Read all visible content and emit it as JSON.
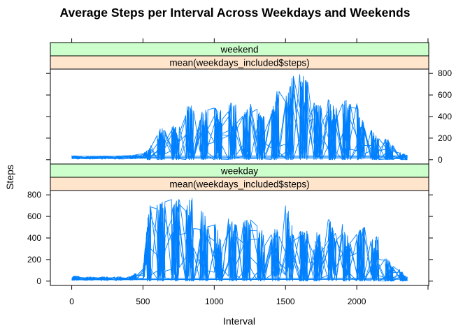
{
  "chart_data": {
    "type": "line",
    "title": "Average Steps per Interval Across Weekdays and Weekends",
    "xlabel": "Interval",
    "ylabel": "Steps",
    "xlim": [
      -150,
      2505
    ],
    "ylim": [
      -40,
      840
    ],
    "x_ticks": [
      0,
      500,
      1000,
      1500,
      2000
    ],
    "y_ticks": [
      0,
      200,
      400,
      600,
      800
    ],
    "line_color": "#0080ff",
    "strip_colors": {
      "group": "#ccffcc",
      "variable": "#ffe5cc"
    },
    "panels": [
      {
        "group": "weekend",
        "variable": "mean(weekdays_included$steps)",
        "y_axis_side": "right",
        "series_envelope": {
          "x": [
            0,
            100,
            200,
            300,
            400,
            500,
            550,
            600,
            650,
            700,
            750,
            800,
            850,
            900,
            950,
            1000,
            1050,
            1100,
            1150,
            1200,
            1250,
            1300,
            1350,
            1400,
            1450,
            1500,
            1550,
            1600,
            1650,
            1700,
            1750,
            1800,
            1850,
            1900,
            1950,
            2000,
            2050,
            2100,
            2150,
            2200,
            2250,
            2300,
            2355
          ],
          "y": [
            40,
            30,
            35,
            35,
            40,
            55,
            120,
            250,
            350,
            330,
            300,
            540,
            540,
            440,
            470,
            520,
            480,
            540,
            510,
            430,
            540,
            470,
            400,
            440,
            690,
            580,
            790,
            790,
            770,
            560,
            520,
            580,
            470,
            570,
            540,
            540,
            330,
            300,
            210,
            210,
            150,
            80,
            40
          ]
        }
      },
      {
        "group": "weekday",
        "variable": "mean(weekdays_included$steps)",
        "y_axis_side": "left",
        "series_envelope": {
          "x": [
            0,
            100,
            200,
            300,
            400,
            500,
            550,
            600,
            650,
            700,
            750,
            800,
            850,
            900,
            950,
            1000,
            1050,
            1100,
            1150,
            1200,
            1250,
            1300,
            1350,
            1400,
            1450,
            1500,
            1550,
            1600,
            1650,
            1700,
            1750,
            1800,
            1850,
            1900,
            1950,
            2000,
            2050,
            2100,
            2150,
            2200,
            2250,
            2300,
            2355
          ],
          "y": [
            50,
            40,
            40,
            40,
            40,
            120,
            790,
            750,
            770,
            760,
            780,
            740,
            780,
            720,
            560,
            560,
            400,
            580,
            540,
            540,
            620,
            530,
            460,
            440,
            560,
            760,
            490,
            470,
            470,
            540,
            420,
            600,
            470,
            560,
            380,
            460,
            520,
            380,
            420,
            250,
            140,
            110,
            40
          ]
        }
      }
    ]
  }
}
